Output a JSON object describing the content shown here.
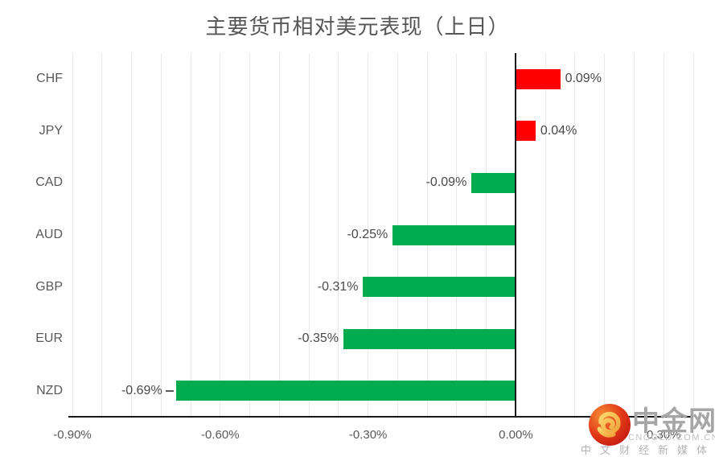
{
  "chart_data": {
    "type": "bar",
    "orientation": "horizontal",
    "title": "主要货币相对美元表现（上日）",
    "categories": [
      "CHF",
      "JPY",
      "CAD",
      "AUD",
      "GBP",
      "EUR",
      "NZD"
    ],
    "values": [
      0.09,
      0.04,
      -0.09,
      -0.25,
      -0.31,
      -0.35,
      -0.69
    ],
    "value_labels": [
      "0.09%",
      "0.04%",
      "-0.09%",
      "-0.25%",
      "-0.31%",
      "-0.35%",
      "-0.69%"
    ],
    "unit": "percent",
    "xlim": [
      -0.9,
      0.36
    ],
    "minor_grid_unit": 0.06,
    "x_ticks": [
      {
        "value": -0.9,
        "label": "-0.90%"
      },
      {
        "value": -0.6,
        "label": "-0.60%"
      },
      {
        "value": -0.3,
        "label": "-0.30%"
      },
      {
        "value": 0.0,
        "label": "0.00%"
      },
      {
        "value": 0.3,
        "label": "0.30%"
      }
    ],
    "leader_line_category": "NZD",
    "legend": "none",
    "grid": "vertical-minor",
    "colors": {
      "positive_bar": "#fe0000",
      "negative_bar": "#00ac4e",
      "gridline": "#e9e9e9",
      "axis_line": "#1a1a1a",
      "tick_label": "#595959",
      "category_label": "#595959",
      "value_label": "#494949",
      "title": "#565656"
    }
  },
  "watermark": {
    "brand": "中金网",
    "domain": "CNGOLD.COM.CN",
    "tagline": "中文财经新媒体",
    "logo_colors": {
      "circle_outer": "#c81d12",
      "circle_inner": "#ef6a22",
      "swirl_gold": "#f7c549"
    }
  }
}
